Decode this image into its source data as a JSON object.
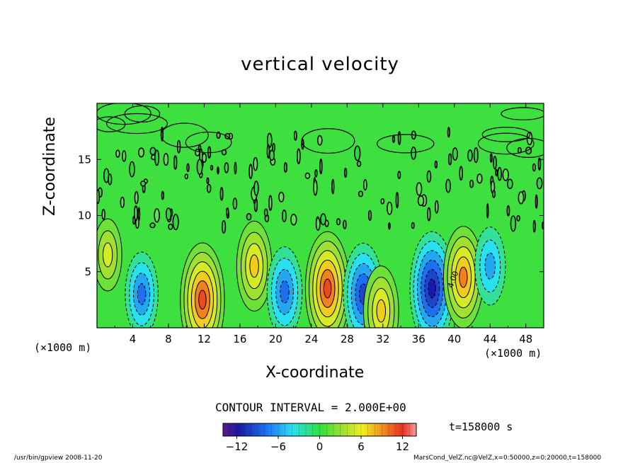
{
  "chart_data": {
    "type": "heatmap",
    "title": "vertical velocity",
    "xlabel": "X-coordinate",
    "ylabel": "Z-coordinate",
    "x_unit": "(×1000 m)",
    "xlim": [
      0,
      50
    ],
    "ylim": [
      0,
      20
    ],
    "x_ticks": [
      4,
      8,
      12,
      16,
      20,
      24,
      28,
      32,
      36,
      40,
      44,
      48
    ],
    "y_ticks": [
      5,
      10,
      15
    ],
    "colorbar": {
      "min": -14,
      "max": 14,
      "ticks": [
        -12,
        -6,
        0,
        6,
        12
      ],
      "tick_labels": [
        "−12",
        "−6",
        "0",
        "6",
        "12"
      ]
    },
    "contour_interval_text": "CONTOUR INTERVAL = 2.000E+00",
    "contour_label": "4.00",
    "time_text": "t=158000 s",
    "cells": [
      {
        "x": 1.2,
        "z": 6.5,
        "w": 5
      },
      {
        "x": 5.0,
        "z": 3.0,
        "w": -7
      },
      {
        "x": 11.8,
        "z": 2.5,
        "w": 12
      },
      {
        "x": 17.6,
        "z": 5.5,
        "w": 8
      },
      {
        "x": 21.0,
        "z": 3.2,
        "w": -8
      },
      {
        "x": 25.8,
        "z": 3.5,
        "w": 12
      },
      {
        "x": 29.8,
        "z": 3.0,
        "w": -10
      },
      {
        "x": 31.8,
        "z": 1.5,
        "w": 8
      },
      {
        "x": 37.5,
        "z": 3.5,
        "w": -12
      },
      {
        "x": 41.0,
        "z": 4.5,
        "w": 10
      },
      {
        "x": 44.0,
        "z": 5.5,
        "w": -6
      }
    ]
  },
  "footer": {
    "left": "/usr/bin/gpview   2008-11-20",
    "right": "MarsCond_VelZ.nc@VelZ,x=0:50000,z=0:20000,t=158000"
  }
}
